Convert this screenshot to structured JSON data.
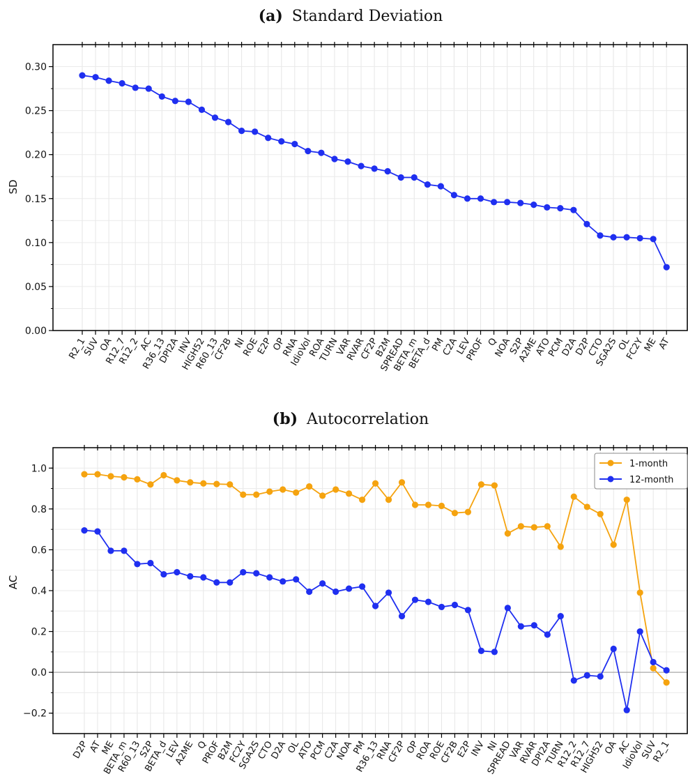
{
  "chart_data": [
    {
      "type": "line",
      "title_prefix": "(a)",
      "title": "Standard Deviation",
      "xlabel": "",
      "ylabel": "SD",
      "ylim": [
        0,
        0.325
      ],
      "yticks": [
        "0.00",
        "0.05",
        "0.10",
        "0.15",
        "0.20",
        "0.25",
        "0.30"
      ],
      "grid": true,
      "categories": [
        "R2_1",
        "SUV",
        "OA",
        "R12_7",
        "R12_2",
        "AC",
        "R36_13",
        "DPI2A",
        "INV",
        "HIGH52",
        "R60_13",
        "CF2B",
        "NI",
        "ROE",
        "E2P",
        "OP",
        "RNA",
        "IdioVol",
        "ROA",
        "TURN",
        "VAR",
        "RVAR",
        "CF2P",
        "B2M",
        "SPREAD",
        "BETA_m",
        "BETA_d",
        "PM",
        "C2A",
        "LEV",
        "PROF",
        "Q",
        "NOA",
        "S2P",
        "A2ME",
        "ATO",
        "PCM",
        "D2A",
        "D2P",
        "CTO",
        "SGA2S",
        "OL",
        "FC2Y",
        "ME",
        "AT"
      ],
      "series": [
        {
          "color": "#1f2ff0",
          "values": [
            0.29,
            0.288,
            0.284,
            0.281,
            0.276,
            0.275,
            0.266,
            0.261,
            0.26,
            0.251,
            0.242,
            0.237,
            0.227,
            0.226,
            0.219,
            0.215,
            0.212,
            0.204,
            0.202,
            0.195,
            0.192,
            0.187,
            0.184,
            0.181,
            0.174,
            0.174,
            0.166,
            0.164,
            0.154,
            0.15,
            0.15,
            0.146,
            0.146,
            0.145,
            0.143,
            0.14,
            0.139,
            0.137,
            0.121,
            0.108,
            0.106,
            0.106,
            0.105,
            0.104,
            0.072
          ]
        }
      ]
    },
    {
      "type": "line",
      "title_prefix": "(b)",
      "title": "Autocorrelation",
      "xlabel": "",
      "ylabel": "AC",
      "ylim": [
        -0.3,
        1.1
      ],
      "yticks": [
        "−0.2",
        "0.0",
        "0.2",
        "0.4",
        "0.6",
        "0.8",
        "1.0"
      ],
      "grid": true,
      "legend_position": "top-right",
      "categories": [
        "D2P",
        "AT",
        "ME",
        "BETA_m",
        "R60_13",
        "S2P",
        "BETA_d",
        "LEV",
        "A2ME",
        "Q",
        "PROF",
        "B2M",
        "FC2Y",
        "SGA2S",
        "CTO",
        "D2A",
        "OL",
        "ATO",
        "PCM",
        "C2A",
        "NOA",
        "PM",
        "R36_13",
        "RNA",
        "CF2P",
        "OP",
        "ROA",
        "ROE",
        "CF2B",
        "E2P",
        "INV",
        "NI",
        "SPREAD",
        "VAR",
        "RVAR",
        "DPI2A",
        "TURN",
        "R12_2",
        "R12_7",
        "HIGH52",
        "OA",
        "AC",
        "IdioVol",
        "SUV",
        "R2_1"
      ],
      "series": [
        {
          "name": "1-month",
          "color": "#f5a30f",
          "values": [
            0.97,
            0.97,
            0.96,
            0.955,
            0.945,
            0.92,
            0.965,
            0.94,
            0.93,
            0.925,
            0.922,
            0.92,
            0.87,
            0.87,
            0.885,
            0.895,
            0.88,
            0.91,
            0.865,
            0.895,
            0.875,
            0.845,
            0.925,
            0.845,
            0.93,
            0.82,
            0.82,
            0.815,
            0.78,
            0.785,
            0.92,
            0.915,
            0.68,
            0.715,
            0.71,
            0.715,
            0.615,
            0.86,
            0.81,
            0.775,
            0.625,
            0.845,
            0.39,
            0.02,
            -0.05
          ]
        },
        {
          "name": "12-month",
          "color": "#1f2ff0",
          "values": [
            0.695,
            0.69,
            0.595,
            0.595,
            0.53,
            0.535,
            0.48,
            0.49,
            0.47,
            0.465,
            0.44,
            0.44,
            0.49,
            0.485,
            0.465,
            0.445,
            0.455,
            0.395,
            0.435,
            0.395,
            0.41,
            0.42,
            0.325,
            0.39,
            0.275,
            0.355,
            0.345,
            0.32,
            0.33,
            0.305,
            0.105,
            0.1,
            0.315,
            0.225,
            0.23,
            0.185,
            0.275,
            -0.04,
            -0.015,
            -0.02,
            0.115,
            -0.185,
            0.2,
            0.05,
            0.01
          ]
        }
      ]
    }
  ]
}
